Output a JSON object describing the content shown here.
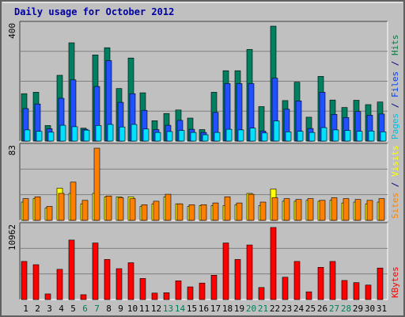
{
  "chart_data": {
    "type": "bar",
    "title": "Daily usage for October 2012",
    "days": [
      "1",
      "2",
      "3",
      "4",
      "5",
      "6",
      "7",
      "8",
      "9",
      "10",
      "11",
      "12",
      "13",
      "14",
      "15",
      "16",
      "17",
      "18",
      "19",
      "20",
      "21",
      "22",
      "23",
      "24",
      "25",
      "26",
      "27",
      "28",
      "29",
      "30",
      "31"
    ],
    "weekend_days": [
      "6",
      "7",
      "13",
      "14",
      "20",
      "21",
      "27",
      "28"
    ],
    "panels": [
      {
        "id": "hits_files_pages",
        "ymax_label": "400",
        "ylim": [
          0,
          400
        ],
        "legend": [
          {
            "text": "Pages",
            "color": "#00c0e0"
          },
          {
            "text": "/",
            "color": "#000080"
          },
          {
            "text": "Files",
            "color": "#0040ff"
          },
          {
            "text": "/",
            "color": "#000080"
          },
          {
            "text": "Hits",
            "color": "#008040"
          }
        ],
        "series": [
          {
            "name": "Hits",
            "color": "#008060",
            "values": [
              165,
              170,
              54,
              229,
              342,
              45,
              300,
              325,
              183,
              289,
              168,
              71,
              96,
              108,
              80,
              40,
              170,
              245,
              245,
              319,
              120,
              400,
              141,
              205,
              83,
              225,
              143,
              117,
              142,
              127,
              136
            ]
          },
          {
            "name": "Files",
            "color": "#2050ff",
            "values": [
              113,
              129,
              43,
              149,
              213,
              41,
              190,
              280,
              135,
              165,
              107,
              40,
              55,
              72,
              41,
              30,
              100,
              200,
              200,
              200,
              35,
              219,
              111,
              140,
              44,
              170,
              93,
              82,
              103,
              90,
              94
            ]
          },
          {
            "name": "Pages",
            "color": "#00e0ff",
            "values": [
              39,
              34,
              31,
              55,
              50,
              38,
              54,
              58,
              49,
              58,
              42,
              30,
              33,
              37,
              30,
              22,
              30,
              41,
              39,
              45,
              28,
              70,
              32,
              34,
              30,
              47,
              39,
              37,
              34,
              35,
              32
            ]
          }
        ]
      },
      {
        "id": "visits_sites",
        "ymax_label": "83",
        "ylim": [
          0,
          83
        ],
        "legend": [
          {
            "text": "Sites",
            "color": "#ff8000"
          },
          {
            "text": "/",
            "color": "#000080"
          },
          {
            "text": "Visits",
            "color": "#ffff00"
          }
        ],
        "series": [
          {
            "name": "Visits",
            "color": "#ffff00",
            "values": [
              21,
              25,
              14,
              37,
              31,
              19,
              31,
              27,
              27,
              27,
              16,
              19,
              27,
              19,
              16,
              17,
              17,
              17,
              18,
              31,
              17,
              36,
              22,
              22,
              23,
              22,
              23,
              20,
              21,
              19,
              21
            ]
          },
          {
            "name": "Sites",
            "color": "#ff8000",
            "values": [
              25,
              27,
              16,
              31,
              44,
              23,
              83,
              28,
              26,
              25,
              18,
              22,
              30,
              19,
              18,
              18,
              20,
              27,
              20,
              30,
              21,
              26,
              25,
              24,
              25,
              23,
              26,
              25,
              24,
              23,
              25
            ]
          }
        ]
      },
      {
        "id": "kbytes",
        "ymax_label": "10962",
        "ylim": [
          0,
          10962
        ],
        "legend": [
          {
            "text": "KBytes",
            "color": "#ff0000"
          }
        ],
        "series": [
          {
            "name": "KBytes",
            "color": "#ff0000",
            "values": [
              5800,
              5300,
              860,
              4600,
              9050,
              730,
              8600,
              6100,
              4700,
              5600,
              3200,
              990,
              1040,
              2850,
              1930,
              2500,
              3700,
              8600,
              6100,
              8300,
              1830,
              10962,
              3400,
              5800,
              1180,
              4900,
              5800,
              2900,
              2580,
              2200,
              4800
            ]
          }
        ]
      }
    ],
    "colors": {
      "background": "#c0c0c0",
      "grid": "#808080",
      "title": "#0000a0",
      "weekday_label": "#000000",
      "weekend_label": "#00805c"
    }
  }
}
